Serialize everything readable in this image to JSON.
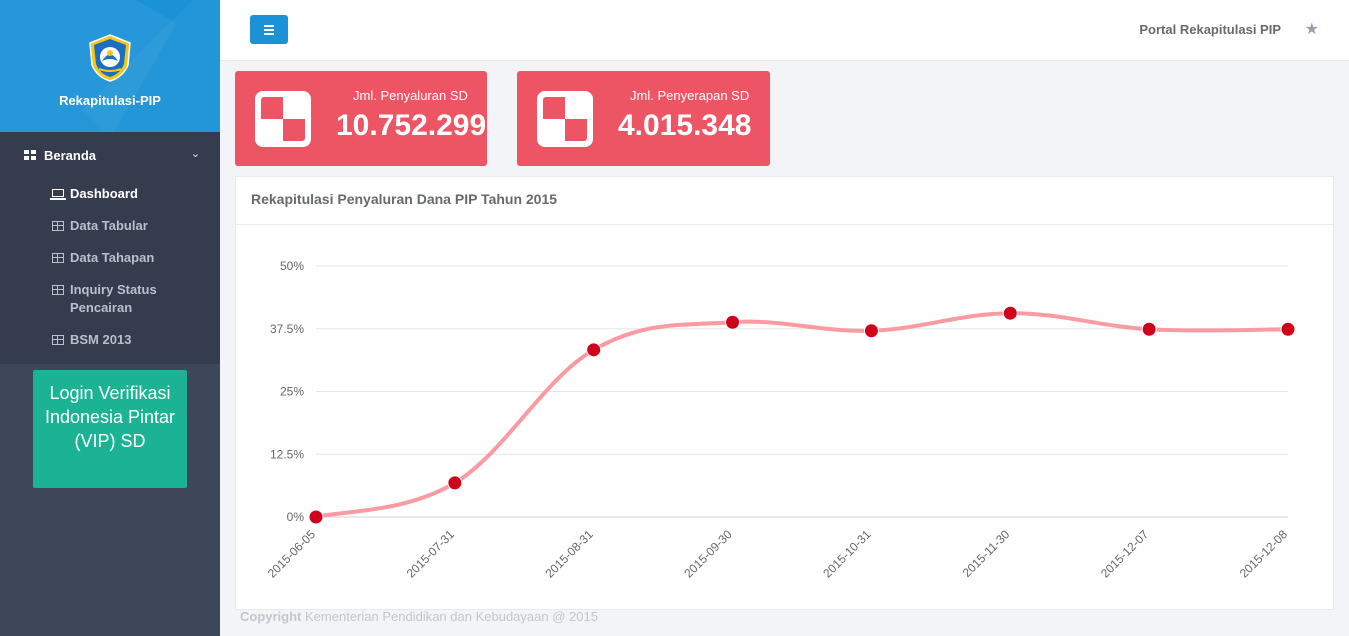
{
  "sidebar": {
    "brand_title": "Rekapitulasi-PIP",
    "menu_header": "Beranda",
    "items": [
      {
        "label": "Dashboard",
        "icon": "laptop-icon",
        "active": true
      },
      {
        "label": "Data Tabular",
        "icon": "table-icon"
      },
      {
        "label": "Data Tahapan",
        "icon": "table-icon"
      },
      {
        "label": "Inquiry Status Pencairan",
        "icon": "table-icon"
      },
      {
        "label": "BSM 2013",
        "icon": "table-icon"
      }
    ],
    "login_box": "Login Verifikasi Indonesia Pintar (VIP) SD"
  },
  "header": {
    "portal_title": "Portal Rekapitulasi PIP"
  },
  "stats": [
    {
      "label": "Jml. Penyaluran SD",
      "value": "10.752.299"
    },
    {
      "label": "Jml. Penyerapan SD",
      "value": "4.015.348"
    }
  ],
  "chart_panel": {
    "title": "Rekapitulasi Penyaluran Dana PIP Tahun 2015"
  },
  "chart_data": {
    "type": "line",
    "title": "",
    "xlabel": "",
    "ylabel": "",
    "categories": [
      "2015-06-05",
      "2015-07-31",
      "2015-08-31",
      "2015-09-30",
      "2015-10-31",
      "2015-11-30",
      "2015-12-07",
      "2015-12-08"
    ],
    "series": [
      {
        "values": [
          0,
          6.8,
          33.3,
          38.8,
          37.1,
          40.6,
          37.4,
          37.4
        ],
        "color": "#f99ba0",
        "point_color": "#d0021b"
      }
    ],
    "yticks": [
      "0%",
      "12.5%",
      "25%",
      "37.5%",
      "50%"
    ],
    "ylim": [
      0,
      50
    ],
    "grid": true
  },
  "footer": {
    "copyright_label": "Copyright",
    "copyright_text": "Kementerian Pendidikan dan Kebudayaan @ 2015"
  },
  "colors": {
    "brand_blue": "#1b92d6",
    "stat_red": "#ed5565",
    "login_green": "#1bb394",
    "sidebar_bg": "#3e465a"
  }
}
